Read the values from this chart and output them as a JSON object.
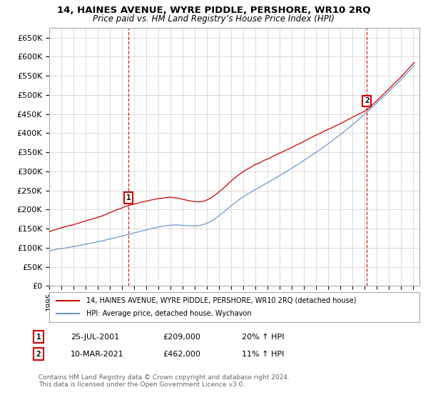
{
  "title": "14, HAINES AVENUE, WYRE PIDDLE, PERSHORE, WR10 2RQ",
  "subtitle": "Price paid vs. HM Land Registry’s House Price Index (HPI)",
  "red_label": "14, HAINES AVENUE, WYRE PIDDLE, PERSHORE, WR10 2RQ (detached house)",
  "blue_label": "HPI: Average price, detached house, Wychavon",
  "footnote": "Contains HM Land Registry data © Crown copyright and database right 2024.\nThis data is licensed under the Open Government Licence v3.0.",
  "marker1_date": "25-JUL-2001",
  "marker1_price": "£209,000",
  "marker1_hpi": "20% ↑ HPI",
  "marker2_date": "10-MAR-2021",
  "marker2_price": "£462,000",
  "marker2_hpi": "11% ↑ HPI",
  "sale1_year": 2001.54,
  "sale2_year": 2021.17,
  "sale1_price": 209000,
  "sale2_price": 462000,
  "ylim": [
    0,
    675000
  ],
  "yticks": [
    0,
    50000,
    100000,
    150000,
    200000,
    250000,
    300000,
    350000,
    400000,
    450000,
    500000,
    550000,
    600000,
    650000
  ],
  "xlim_start": 1995,
  "xlim_end": 2025.5,
  "background_color": "#ffffff",
  "grid_color": "#cccccc",
  "red_color": "#cc0000",
  "blue_color": "#6699cc",
  "dashed_color": "#cc0000"
}
